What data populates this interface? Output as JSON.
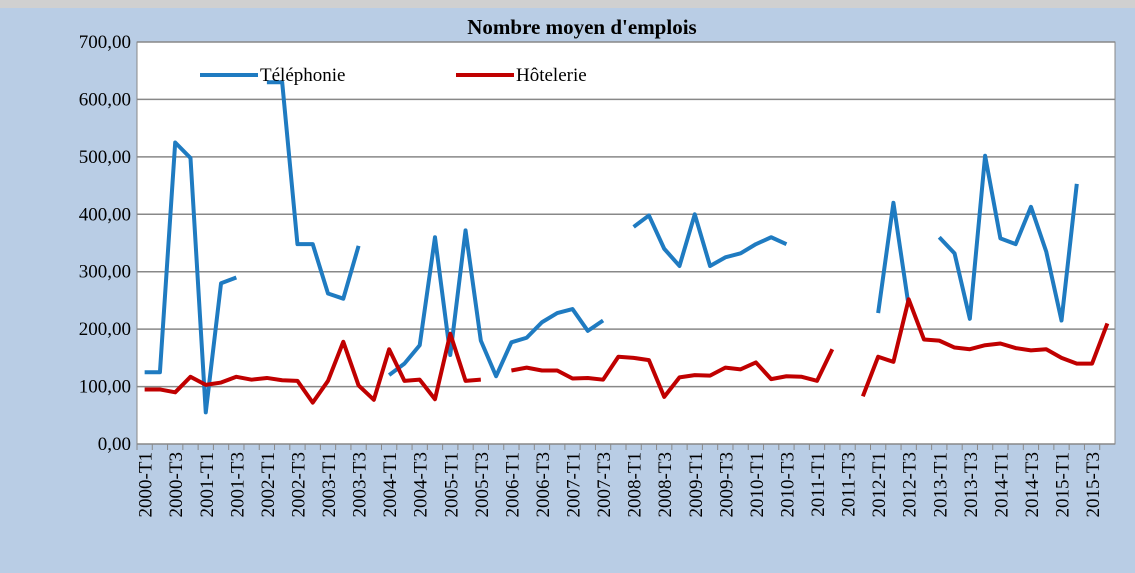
{
  "chart_data": {
    "type": "line",
    "title": "Nombre moyen d'emplois",
    "categories": [
      "2000-T1",
      null,
      "2000-T3",
      null,
      "2001-T1",
      null,
      "2001-T3",
      null,
      "2002-T1",
      null,
      "2002-T3",
      null,
      "2003-T1",
      null,
      "2003-T3",
      null,
      "2004-T1",
      null,
      "2004-T3",
      null,
      "2005-T1",
      null,
      "2005-T3",
      null,
      "2006-T1",
      null,
      "2006-T3",
      null,
      "2007-T1",
      null,
      "2007-T3",
      null,
      "2008-T1",
      null,
      "2008-T3",
      null,
      "2009-T1",
      null,
      "2009-T3",
      null,
      "2010-T1",
      null,
      "2010-T3",
      null,
      "2011-T1",
      null,
      "2011-T3",
      null,
      "2012-T1",
      null,
      "2012-T3",
      null,
      "2013-T1",
      null,
      "2013-T3",
      null,
      "2014-T1",
      null,
      "2014-T3",
      null,
      "2015-T1",
      null,
      "2015-T3",
      null
    ],
    "series": [
      {
        "name": "Téléphonie",
        "color": "#1f7bc1",
        "values": [
          125,
          125,
          525,
          498,
          55,
          280,
          290,
          null,
          630,
          630,
          348,
          348,
          262,
          253,
          345,
          null,
          120,
          140,
          172,
          360,
          155,
          372,
          180,
          118,
          177,
          185,
          212,
          228,
          235,
          197,
          215,
          null,
          378,
          398,
          340,
          310,
          400,
          310,
          325,
          332,
          348,
          360,
          348,
          null,
          null,
          null,
          null,
          null,
          228,
          420,
          240,
          null,
          360,
          332,
          218,
          502,
          358,
          348,
          413,
          335,
          215,
          453,
          null,
          null
        ]
      },
      {
        "name": "Hôtelerie",
        "color": "#c00000",
        "values": [
          95,
          95,
          90,
          117,
          103,
          107,
          117,
          112,
          115,
          111,
          110,
          72,
          110,
          178,
          102,
          77,
          165,
          110,
          112,
          78,
          192,
          110,
          112,
          null,
          128,
          133,
          128,
          128,
          114,
          115,
          112,
          152,
          150,
          146,
          82,
          116,
          120,
          119,
          133,
          130,
          142,
          113,
          118,
          117,
          110,
          165,
          null,
          83,
          152,
          143,
          252,
          182,
          180,
          168,
          165,
          172,
          175,
          167,
          163,
          165,
          150,
          140,
          140,
          210
        ]
      }
    ],
    "ylim": [
      0,
      700
    ],
    "yticks": [
      {
        "value": 0,
        "label": "0,00"
      },
      {
        "value": 100,
        "label": "100,00"
      },
      {
        "value": 200,
        "label": "200,00"
      },
      {
        "value": 300,
        "label": "300,00"
      },
      {
        "value": 400,
        "label": "400,00"
      },
      {
        "value": 500,
        "label": "500,00"
      },
      {
        "value": 600,
        "label": "600,00"
      },
      {
        "value": 700,
        "label": "700,00"
      }
    ],
    "grid": true,
    "legend": "top-left"
  }
}
